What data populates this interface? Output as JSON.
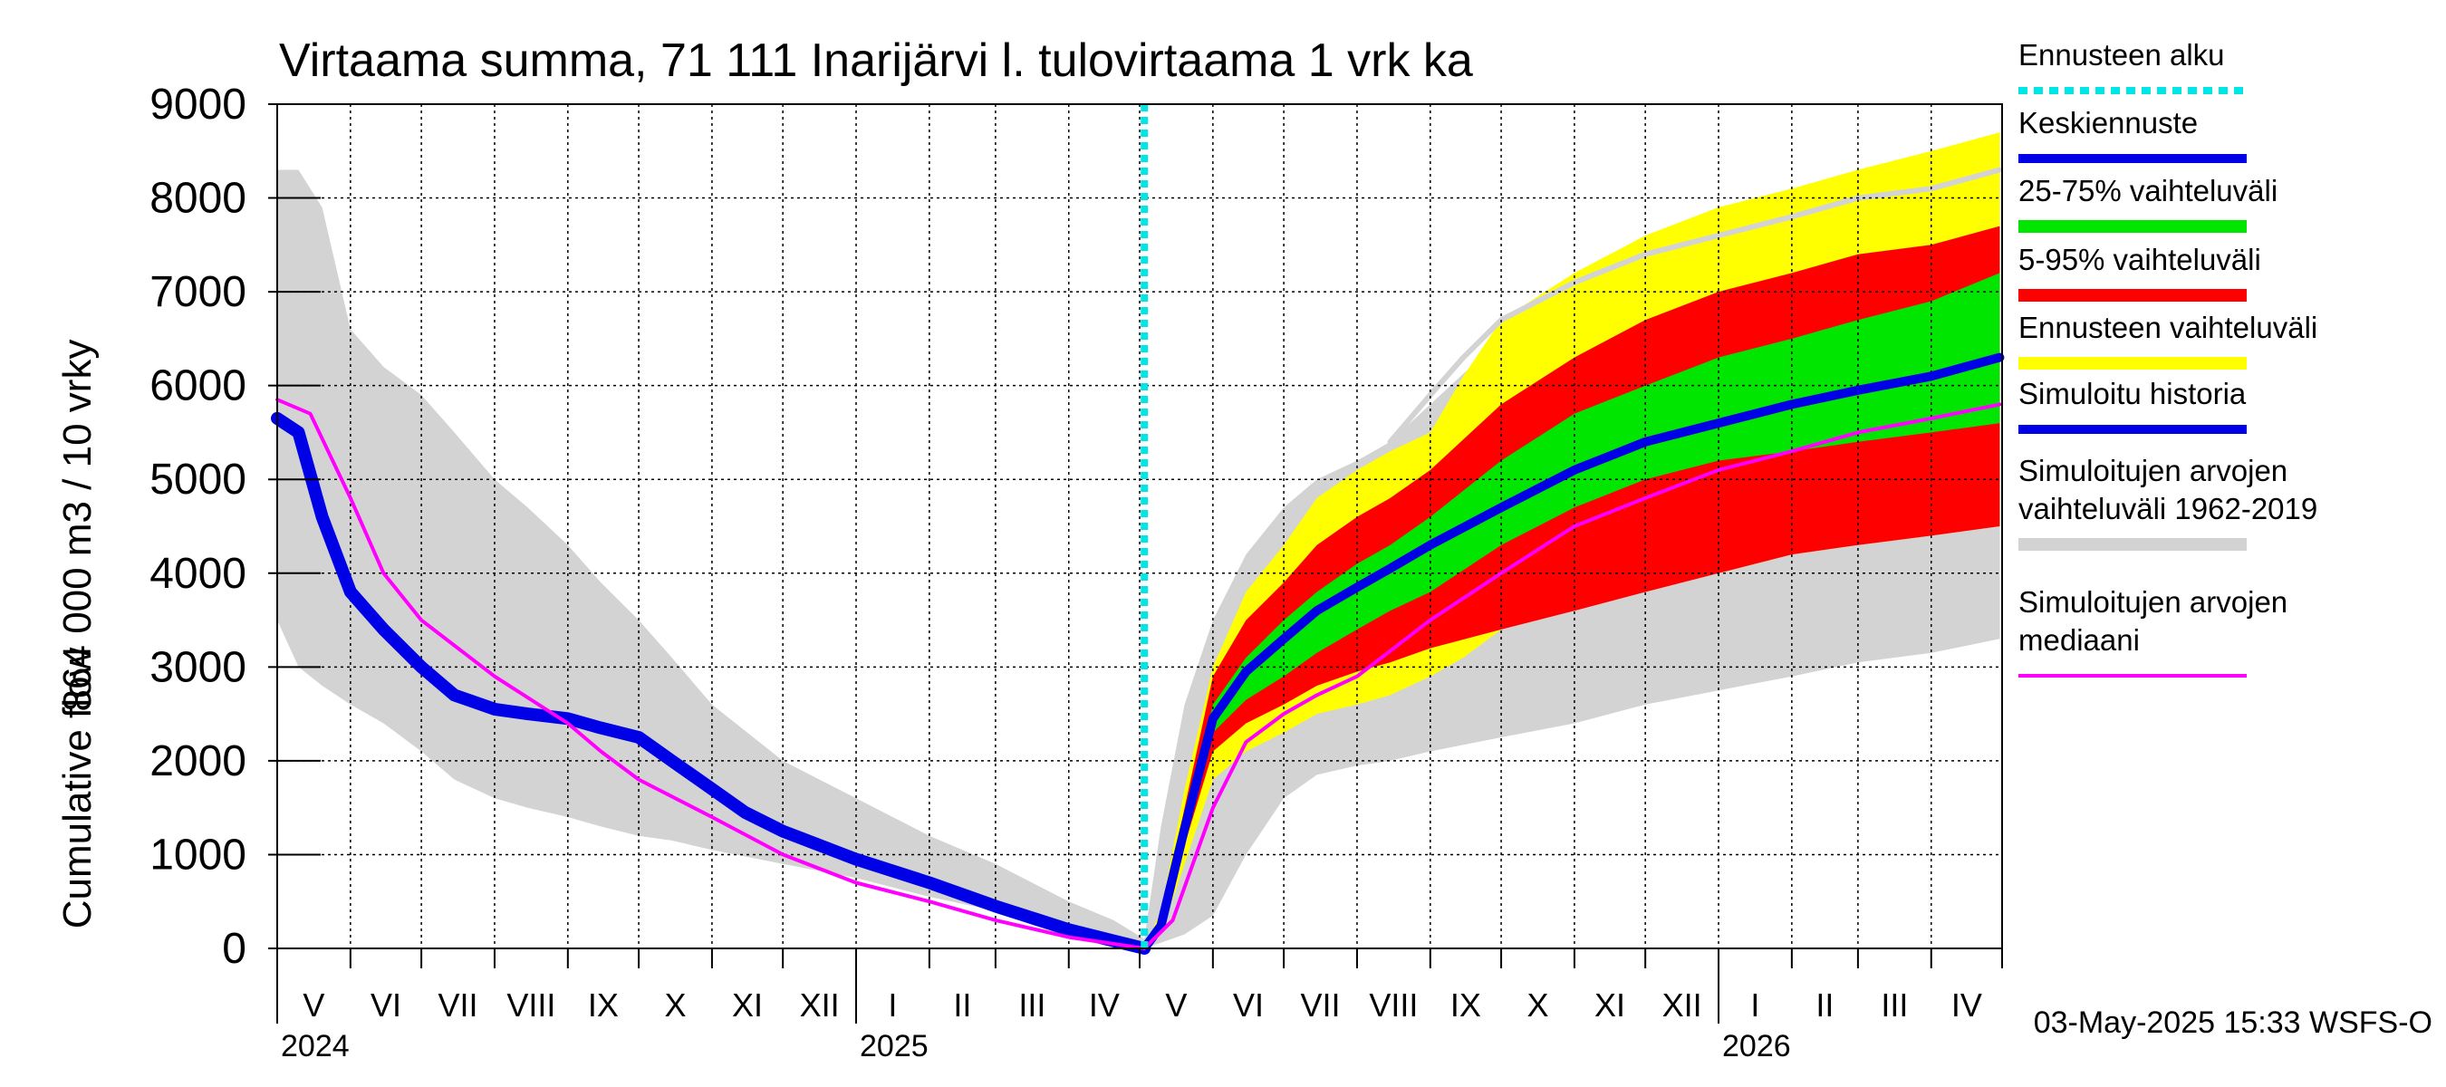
{
  "chart_data": {
    "type": "area",
    "title": "Virtaama summa, 71 111 Inarijärvi l. tulovirtaama 1 vrk ka",
    "ylabel_line1": "864 000 m3 / 10 vrky",
    "ylabel_line2": "Cumulative flow",
    "ylim": [
      0,
      9000
    ],
    "y_ticks": [
      0,
      1000,
      2000,
      3000,
      4000,
      5000,
      6000,
      7000,
      8000,
      9000
    ],
    "x_month_labels": [
      "V",
      "VI",
      "VII",
      "VIII",
      "IX",
      "X",
      "XI",
      "XII",
      "I",
      "II",
      "III",
      "IV",
      "V",
      "VI",
      "VII",
      "VIII",
      "IX",
      "X",
      "XI",
      "XII",
      "I",
      "II",
      "III",
      "IV"
    ],
    "x_year_labels": [
      "2024",
      "2025",
      "2026"
    ],
    "xlim": [
      "2024-05-01",
      "2026-04-30"
    ],
    "grid": true,
    "legend_placement": "right",
    "forecast_start": "2025-05-03",
    "footer": "03-May-2025 15:33 WSFS-O",
    "colors": {
      "forecast_start": "#00e5e5",
      "mean_forecast": "#0000e6",
      "range_25_75": "#00e600",
      "range_5_95": "#ff0000",
      "forecast_range": "#ffff00",
      "simulated_history": "#0000e6",
      "historical_range": "#d3d3d3",
      "historical_median": "#ff00ff"
    },
    "legend": [
      {
        "key": "forecast_start",
        "label": "Ennusteen alku",
        "style": "dotted"
      },
      {
        "key": "mean_forecast",
        "label": "Keskiennuste",
        "style": "line"
      },
      {
        "key": "range_25_75",
        "label": "25-75% vaihteluväli",
        "style": "band"
      },
      {
        "key": "range_5_95",
        "label": "5-95% vaihteluväli",
        "style": "band"
      },
      {
        "key": "forecast_range",
        "label": "Ennusteen vaihteluväli",
        "style": "band"
      },
      {
        "key": "simulated_history",
        "label": "Simuloitu historia",
        "style": "line"
      },
      {
        "key": "historical_range",
        "label": "Simuloitujen arvojen vaihteluväli 1962-2019",
        "style": "band"
      },
      {
        "key": "historical_median",
        "label": "Simuloitujen arvojen mediaani",
        "style": "thin"
      }
    ],
    "series": {
      "historical_range": {
        "x": [
          "2024-05-01",
          "2024-05-10",
          "2024-05-20",
          "2024-06-01",
          "2024-06-15",
          "2024-07-01",
          "2024-07-15",
          "2024-08-01",
          "2024-08-15",
          "2024-09-01",
          "2024-09-15",
          "2024-10-01",
          "2024-10-15",
          "2024-11-01",
          "2024-12-01",
          "2025-01-01",
          "2025-02-01",
          "2025-03-01",
          "2025-04-01",
          "2025-04-20",
          "2025-05-03",
          "2025-05-10",
          "2025-05-20",
          "2025-06-01",
          "2025-06-15",
          "2025-07-01",
          "2025-07-15",
          "2025-08-01",
          "2025-08-15",
          "2025-09-01",
          "2025-10-01",
          "2025-11-01",
          "2025-12-01",
          "2026-01-01",
          "2026-02-01",
          "2026-03-01",
          "2026-04-01",
          "2026-04-30"
        ],
        "upper": [
          8300,
          8300,
          7900,
          6600,
          6200,
          5900,
          5500,
          5000,
          4700,
          4300,
          3900,
          3500,
          3100,
          2600,
          2000,
          1600,
          1200,
          900,
          500,
          300,
          100,
          1300,
          2600,
          3500,
          4200,
          4700,
          5000,
          5200,
          5400,
          5800,
          6500,
          7000,
          7400,
          7700,
          7900,
          8100,
          8200,
          8300
        ],
        "lower": [
          3500,
          3000,
          2800,
          2600,
          2400,
          2100,
          1800,
          1600,
          1500,
          1400,
          1300,
          1200,
          1150,
          1050,
          900,
          750,
          550,
          400,
          250,
          150,
          0,
          60,
          150,
          350,
          1000,
          1600,
          1850,
          1950,
          2000,
          2100,
          2250,
          2400,
          2600,
          2750,
          2900,
          3050,
          3150,
          3300
        ]
      },
      "forecast_range": {
        "x": [
          "2025-05-03",
          "2025-05-10",
          "2025-05-20",
          "2025-06-01",
          "2025-06-15",
          "2025-07-01",
          "2025-07-15",
          "2025-08-01",
          "2025-08-15",
          "2025-09-01",
          "2025-09-15",
          "2025-10-01",
          "2025-11-01",
          "2025-12-01",
          "2026-01-01",
          "2026-02-01",
          "2026-03-01",
          "2026-04-01",
          "2026-04-30"
        ],
        "upper": [
          0,
          400,
          1700,
          3000,
          3800,
          4300,
          4800,
          5100,
          5300,
          5500,
          6100,
          6700,
          7200,
          7600,
          7900,
          8100,
          8300,
          8500,
          8700
        ],
        "lower": [
          0,
          150,
          900,
          1800,
          2100,
          2300,
          2500,
          2600,
          2700,
          2900,
          3100,
          3400,
          3700,
          3900,
          4000,
          4200,
          4300,
          4400,
          4500
        ]
      },
      "range_5_95": {
        "x": [
          "2025-05-03",
          "2025-05-10",
          "2025-05-20",
          "2025-06-01",
          "2025-06-15",
          "2025-07-01",
          "2025-07-15",
          "2025-08-01",
          "2025-08-15",
          "2025-09-01",
          "2025-10-01",
          "2025-11-01",
          "2025-12-01",
          "2026-01-01",
          "2026-02-01",
          "2026-03-01",
          "2026-04-01",
          "2026-04-30"
        ],
        "upper": [
          0,
          300,
          1500,
          2900,
          3500,
          3900,
          4300,
          4600,
          4800,
          5100,
          5800,
          6300,
          6700,
          7000,
          7200,
          7400,
          7500,
          7700
        ],
        "lower": [
          0,
          200,
          1100,
          2100,
          2400,
          2600,
          2800,
          2950,
          3050,
          3200,
          3400,
          3600,
          3800,
          4000,
          4200,
          4300,
          4400,
          4500
        ]
      },
      "range_25_75": {
        "x": [
          "2025-05-03",
          "2025-05-10",
          "2025-05-20",
          "2025-06-01",
          "2025-06-15",
          "2025-07-01",
          "2025-07-15",
          "2025-08-01",
          "2025-08-15",
          "2025-09-01",
          "2025-10-01",
          "2025-11-01",
          "2025-12-01",
          "2026-01-01",
          "2026-02-01",
          "2026-03-01",
          "2026-04-01",
          "2026-04-30"
        ],
        "upper": [
          0,
          260,
          1350,
          2600,
          3100,
          3500,
          3800,
          4100,
          4300,
          4600,
          5200,
          5700,
          6000,
          6300,
          6500,
          6700,
          6900,
          7200
        ],
        "lower": [
          0,
          220,
          1200,
          2300,
          2650,
          2900,
          3150,
          3400,
          3600,
          3800,
          4300,
          4700,
          5000,
          5200,
          5300,
          5400,
          5500,
          5600
        ]
      },
      "historical_max_line": {
        "x": [
          "2025-08-15",
          "2025-09-01",
          "2025-09-15",
          "2025-10-01",
          "2025-11-01",
          "2025-12-01",
          "2026-01-01",
          "2026-02-01",
          "2026-03-01",
          "2026-04-01",
          "2026-04-30"
        ],
        "y": [
          5400,
          5900,
          6300,
          6700,
          7100,
          7400,
          7600,
          7800,
          8000,
          8100,
          8300
        ]
      },
      "simulated_history": {
        "x": [
          "2024-05-01",
          "2024-05-10",
          "2024-05-20",
          "2024-06-01",
          "2024-06-15",
          "2024-07-01",
          "2024-07-15",
          "2024-08-01",
          "2024-08-15",
          "2024-09-01",
          "2024-09-15",
          "2024-10-01",
          "2024-10-15",
          "2024-11-01",
          "2024-11-15",
          "2024-12-01",
          "2025-01-01",
          "2025-02-01",
          "2025-03-01",
          "2025-04-01",
          "2025-04-20",
          "2025-05-03"
        ],
        "y": [
          5650,
          5500,
          4600,
          3800,
          3400,
          3000,
          2700,
          2550,
          2500,
          2450,
          2350,
          2250,
          2000,
          1700,
          1450,
          1250,
          950,
          700,
          450,
          200,
          80,
          0
        ]
      },
      "mean_forecast": {
        "x": [
          "2025-05-03",
          "2025-05-10",
          "2025-05-20",
          "2025-06-01",
          "2025-06-15",
          "2025-07-01",
          "2025-07-15",
          "2025-08-01",
          "2025-08-15",
          "2025-09-01",
          "2025-10-01",
          "2025-11-01",
          "2025-12-01",
          "2026-01-01",
          "2026-02-01",
          "2026-03-01",
          "2026-04-01",
          "2026-04-30"
        ],
        "y": [
          0,
          240,
          1280,
          2450,
          2950,
          3300,
          3600,
          3850,
          4050,
          4300,
          4700,
          5100,
          5400,
          5600,
          5800,
          5950,
          6100,
          6300
        ]
      },
      "historical_median": {
        "x": [
          "2024-05-01",
          "2024-05-15",
          "2024-06-01",
          "2024-06-15",
          "2024-07-01",
          "2024-08-01",
          "2024-09-01",
          "2024-09-15",
          "2024-10-01",
          "2024-11-01",
          "2024-12-01",
          "2025-01-01",
          "2025-02-01",
          "2025-03-01",
          "2025-04-01",
          "2025-05-03",
          "2025-05-15",
          "2025-06-01",
          "2025-06-15",
          "2025-07-01",
          "2025-07-15",
          "2025-08-01",
          "2025-09-01",
          "2025-10-01",
          "2025-11-01",
          "2025-12-01",
          "2026-01-01",
          "2026-02-01",
          "2026-03-01",
          "2026-04-01",
          "2026-04-30"
        ],
        "y": [
          5850,
          5700,
          4800,
          4000,
          3500,
          2900,
          2400,
          2100,
          1800,
          1400,
          1000,
          700,
          500,
          300,
          120,
          0,
          300,
          1500,
          2200,
          2500,
          2700,
          2900,
          3500,
          4000,
          4500,
          4800,
          5100,
          5300,
          5500,
          5650,
          5800
        ]
      }
    }
  }
}
